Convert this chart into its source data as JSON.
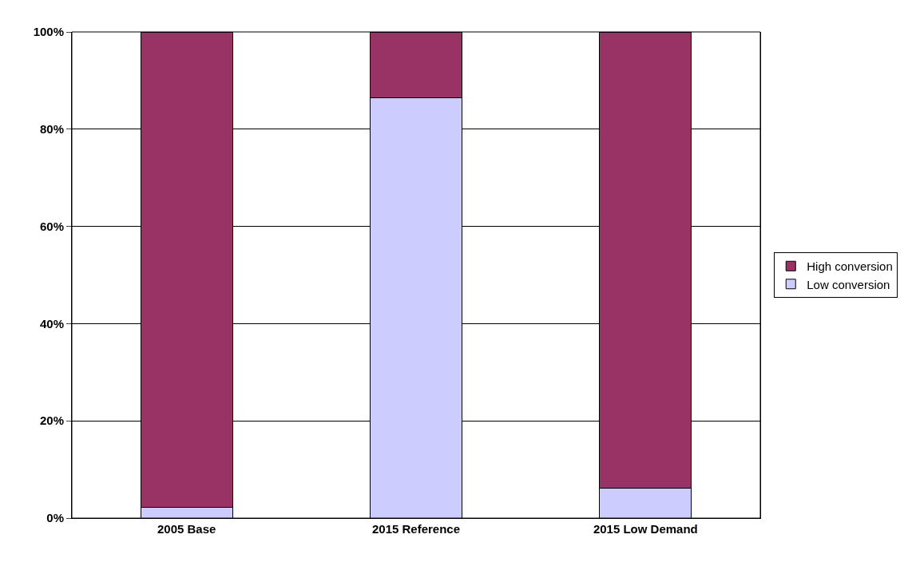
{
  "chart_data": {
    "type": "bar",
    "stacked": true,
    "categories": [
      "2005 Base",
      "2015 Reference",
      "2015 Low Demand"
    ],
    "series": [
      {
        "name": "Low conversion",
        "color": "#ccccff",
        "values": [
          2.2,
          86.5,
          6.2
        ]
      },
      {
        "name": "High conversion",
        "color": "#993366",
        "values": [
          97.8,
          13.5,
          93.8
        ]
      }
    ],
    "ylim": [
      0,
      100
    ],
    "yticks": [
      {
        "value": 0,
        "label": "0%"
      },
      {
        "value": 20,
        "label": "20%"
      },
      {
        "value": 40,
        "label": "40%"
      },
      {
        "value": 60,
        "label": "60%"
      },
      {
        "value": 80,
        "label": "80%"
      },
      {
        "value": 100,
        "label": "100%"
      }
    ],
    "grid": "y",
    "legend": "right"
  }
}
